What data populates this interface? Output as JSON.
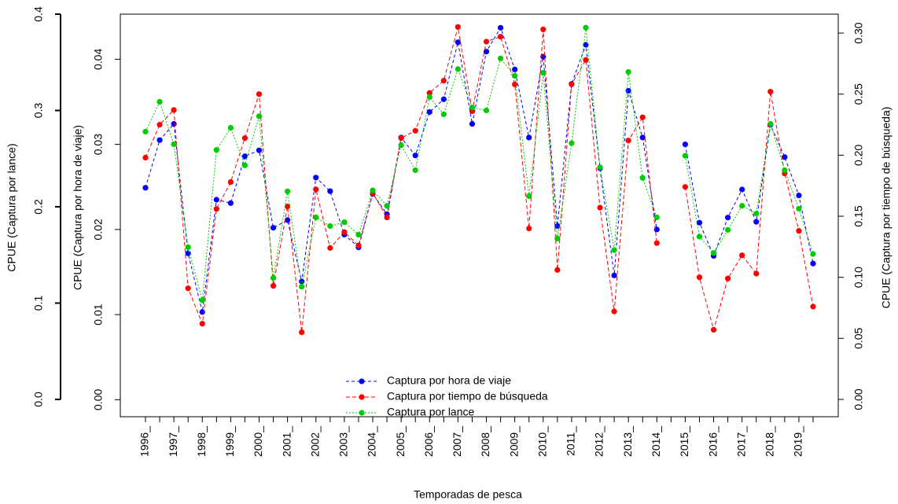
{
  "chart_data": {
    "type": "line",
    "x_label": "Temporadas de pesca",
    "categories": [
      "1996_",
      null,
      "1997_",
      null,
      "1998_",
      null,
      "1999_",
      null,
      "2000_",
      null,
      "2001_",
      null,
      "2002_",
      null,
      "2003_",
      null,
      "2004_",
      null,
      "2005_",
      null,
      "2006_",
      null,
      "2007_",
      null,
      "2008_",
      null,
      "2009_",
      null,
      "2010_",
      null,
      "2011_",
      null,
      "2012_",
      null,
      "2013_",
      null,
      "2014_",
      null,
      "2015_",
      null,
      "2016_",
      null,
      "2017_",
      null,
      "2018_",
      null,
      "2019_",
      null
    ],
    "axes": [
      {
        "side": "outer-left",
        "label": "CPUE (Captura por lance)",
        "lim": [
          -0.018,
          0.4
        ],
        "ticks": [
          {
            "value": 0,
            "label": "0.0"
          },
          0.1,
          0.2,
          0.3,
          0.4
        ]
      },
      {
        "side": "left",
        "label": "CPUE (Captura por hora de viaje)",
        "lim": [
          -0.002,
          0.0453
        ],
        "ticks": [
          {
            "value": 0,
            "label": "0.00"
          },
          0.01,
          0.02,
          0.03,
          0.04
        ]
      },
      {
        "side": "right",
        "label": "CPUE (Captura por tiempo de búsqueda)",
        "lim": [
          -0.0142,
          0.3155
        ],
        "ticks": [
          {
            "value": 0,
            "label": "0.00"
          },
          0.05,
          {
            "value": 0.1,
            "label": "0.10"
          },
          0.15,
          {
            "value": 0.2,
            "label": "0.20"
          },
          0.25,
          {
            "value": 0.3,
            "label": "0.30"
          }
        ]
      }
    ],
    "series": [
      {
        "name": "Captura por hora de viaje",
        "color": "#0000ff",
        "axis": 1,
        "dash": "4,3",
        "values": [
          0.0249,
          0.0305,
          0.0324,
          0.0172,
          0.0103,
          0.0235,
          0.0231,
          0.0286,
          0.0293,
          0.0202,
          0.0211,
          0.0139,
          0.0261,
          0.0245,
          0.0194,
          0.0179,
          0.0242,
          0.0218,
          0.0308,
          0.0287,
          0.0338,
          0.0353,
          0.042,
          0.0324,
          0.0409,
          0.0437,
          0.0388,
          0.0308,
          0.0403,
          0.0204,
          0.0371,
          0.0417,
          0.0272,
          0.0146,
          0.0363,
          0.0308,
          0.02,
          null,
          0.03,
          0.0208,
          0.0169,
          0.0214,
          0.0247,
          0.0209,
          0.0323,
          0.0285,
          0.024,
          0.016
        ]
      },
      {
        "name": "Captura por tiempo de búsqueda",
        "color": "#ff0000",
        "axis": 2,
        "dash": "5,3",
        "values": [
          0.198,
          0.225,
          0.237,
          0.091,
          0.062,
          0.156,
          0.178,
          0.214,
          0.25,
          0.093,
          0.158,
          0.055,
          0.172,
          0.124,
          0.137,
          0.126,
          0.169,
          0.149,
          0.214,
          0.22,
          0.251,
          0.261,
          0.305,
          0.236,
          0.293,
          0.297,
          0.258,
          0.14,
          0.303,
          0.106,
          0.258,
          0.278,
          0.157,
          0.072,
          0.212,
          0.231,
          0.128,
          null,
          0.174,
          0.1,
          0.057,
          0.099,
          0.118,
          0.103,
          0.252,
          0.185,
          0.138,
          0.076
        ]
      },
      {
        "name": "Captura por lance",
        "color": "#00cc00",
        "axis": 0,
        "dash": "2,2",
        "values": [
          0.278,
          0.309,
          0.265,
          0.158,
          0.103,
          0.259,
          0.282,
          0.243,
          0.294,
          0.126,
          0.216,
          0.117,
          0.189,
          0.18,
          0.184,
          0.171,
          0.217,
          0.201,
          0.264,
          0.238,
          0.314,
          0.296,
          0.343,
          0.303,
          0.3,
          0.354,
          0.336,
          0.211,
          0.339,
          0.167,
          0.266,
          0.386,
          0.241,
          0.155,
          0.34,
          0.23,
          0.189,
          null,
          0.253,
          0.169,
          0.152,
          0.176,
          0.201,
          0.193,
          0.286,
          0.238,
          0.198,
          0.151
        ]
      }
    ]
  }
}
